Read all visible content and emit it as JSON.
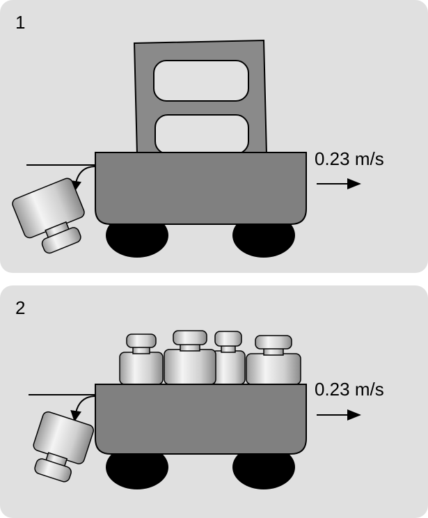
{
  "panels": [
    {
      "number": "1",
      "velocity_label": "0.23 m/s",
      "cargo": "concrete-block"
    },
    {
      "number": "2",
      "velocity_label": "0.23 m/s",
      "cargo": "four-weights"
    }
  ],
  "colors": {
    "panel_bg": "#e0e0e0",
    "cart_body": "#808080",
    "wheel": "#000000",
    "block": "#8a8a8a",
    "block_hole": "#e2e2e2"
  }
}
